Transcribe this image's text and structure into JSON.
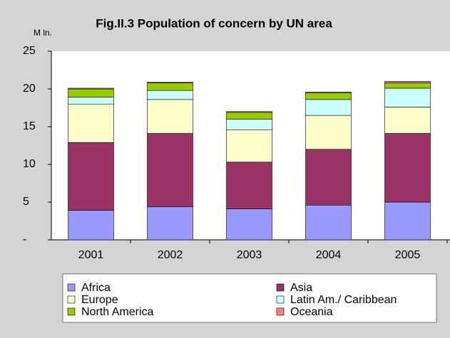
{
  "chart_data": {
    "type": "stacked_bar",
    "title": "Fig.II.3 Population of concern by UN area",
    "y_label": "M ln.",
    "categories": [
      "2001",
      "2002",
      "2003",
      "2004",
      "2005"
    ],
    "series": [
      {
        "name": "Africa",
        "color": "#9999ff",
        "values": [
          3.9,
          4.4,
          4.1,
          4.6,
          5.0
        ]
      },
      {
        "name": "Asia",
        "color": "#993366",
        "values": [
          9.0,
          9.7,
          6.2,
          7.4,
          9.1
        ]
      },
      {
        "name": "Europe",
        "color": "#ffffcc",
        "values": [
          5.1,
          4.5,
          4.3,
          4.5,
          3.5
        ]
      },
      {
        "name": "Latin Am./ Caribbean",
        "color": "#ccffff",
        "values": [
          0.9,
          1.2,
          1.4,
          2.1,
          2.5
        ]
      },
      {
        "name": "North America",
        "color": "#99cc00",
        "values": [
          1.1,
          1.0,
          0.9,
          0.9,
          0.7
        ]
      },
      {
        "name": "Oceania",
        "color": "#ff8080",
        "values": [
          0.1,
          0.1,
          0.1,
          0.1,
          0.2
        ]
      }
    ],
    "ylim": [
      0,
      25
    ],
    "yticks": [
      {
        "value": 0,
        "label": "-"
      },
      5,
      10,
      15,
      20,
      25
    ],
    "legend": "bottom"
  }
}
